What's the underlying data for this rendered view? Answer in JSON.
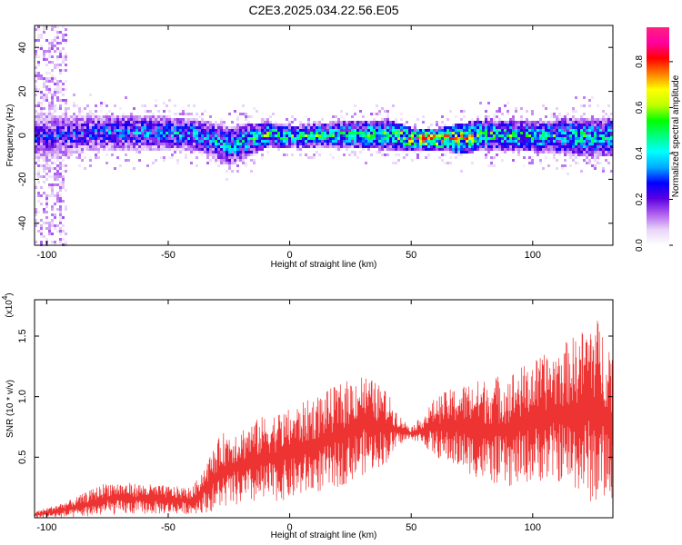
{
  "title": "C2E3.2025.034.22.56.E05",
  "chart_data": [
    {
      "type": "heatmap",
      "xlabel": "Height of straight line (km)",
      "ylabel": "Frequency (Hz)",
      "xlim": [
        -105,
        133
      ],
      "ylim": [
        -50,
        50
      ],
      "xticks": [
        -100,
        -50,
        0,
        50,
        100
      ],
      "yticks": [
        -40,
        -20,
        0,
        20,
        40
      ],
      "colorbar": {
        "label": "Normalized spectral amplitude",
        "range": [
          0,
          0.95
        ],
        "ticks": [
          "0.0",
          "0.2",
          "0.4",
          "0.6",
          "0.8"
        ],
        "colormap": [
          "#ffffff",
          "#e8d4f8",
          "#b060f0",
          "#5a00e0",
          "#0000ff",
          "#00aaff",
          "#00ffff",
          "#00ff80",
          "#00ff00",
          "#c0ff00",
          "#ffff00",
          "#ff8000",
          "#ff0000",
          "#ff00a0",
          "#ff2080"
        ]
      },
      "band_center_profile": {
        "x": [
          -100,
          -80,
          -60,
          -40,
          -25,
          -10,
          0,
          20,
          40,
          50,
          60,
          70,
          80,
          100,
          120,
          130
        ],
        "center": [
          0,
          2,
          2,
          1,
          -4,
          1,
          0,
          1,
          1,
          -1,
          -1,
          -1,
          1,
          0,
          0,
          0
        ],
        "halfwidth": [
          10,
          8,
          8,
          7,
          9,
          6,
          5,
          6,
          7,
          5,
          5,
          7,
          7,
          7,
          9,
          9
        ],
        "peak_amplitude": [
          0.3,
          0.35,
          0.4,
          0.45,
          0.45,
          0.6,
          0.6,
          0.55,
          0.6,
          0.85,
          0.9,
          0.8,
          0.6,
          0.55,
          0.55,
          0.5
        ]
      }
    },
    {
      "type": "line",
      "xlabel": "Height of straight line (km)",
      "ylabel": "SNR (10 * v/v)",
      "yscale_label": "(x10",
      "yscale_exp": "4",
      "xlim": [
        -105,
        133
      ],
      "ylim": [
        0,
        1.8
      ],
      "xticks": [
        -100,
        -50,
        0,
        50,
        100
      ],
      "yticks": [
        "0.5",
        "1.0",
        "1.5"
      ],
      "color": "#ee3333",
      "envelope": {
        "x": [
          -105,
          -90,
          -75,
          -60,
          -40,
          -32,
          -28,
          -20,
          -10,
          0,
          10,
          20,
          30,
          40,
          45,
          50,
          55,
          60,
          70,
          80,
          90,
          100,
          110,
          120,
          125,
          133
        ],
        "upper": [
          0.05,
          0.15,
          0.3,
          0.28,
          0.25,
          0.55,
          0.7,
          0.75,
          0.85,
          0.9,
          1.0,
          1.1,
          1.2,
          1.05,
          0.85,
          0.75,
          0.85,
          1.0,
          1.1,
          1.15,
          1.2,
          1.3,
          1.4,
          1.55,
          1.7,
          1.45
        ],
        "lower": [
          0.0,
          0.0,
          0.02,
          0.03,
          0.03,
          0.05,
          0.08,
          0.1,
          0.12,
          0.15,
          0.2,
          0.25,
          0.35,
          0.45,
          0.6,
          0.65,
          0.6,
          0.5,
          0.4,
          0.3,
          0.25,
          0.3,
          0.3,
          0.2,
          0.1,
          0.15
        ]
      }
    }
  ]
}
